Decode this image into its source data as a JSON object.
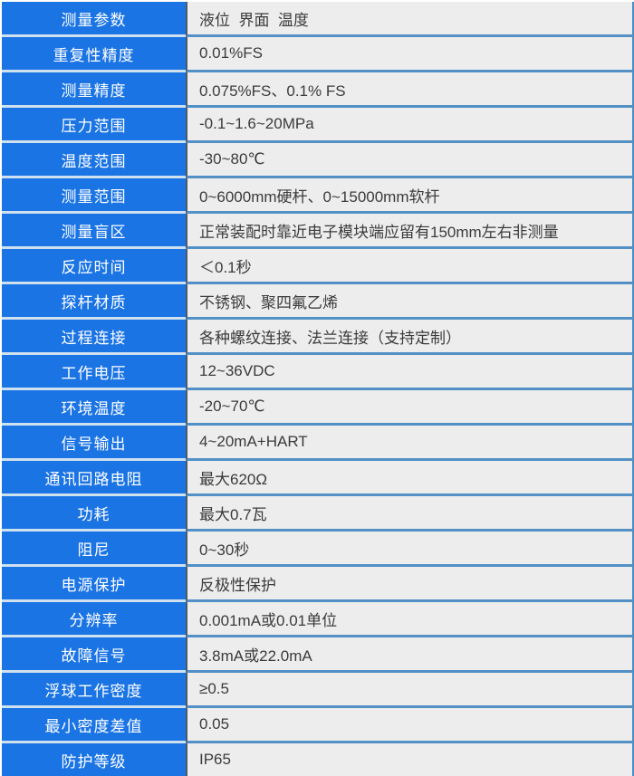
{
  "table": {
    "title_semantic": "magnetostrictive-level-transmitter-specifications",
    "rows": [
      {
        "label": "测量参数",
        "value": "液位  界面  温度"
      },
      {
        "label": "重复性精度",
        "value": "0.01%FS"
      },
      {
        "label": "测量精度",
        "value": "0.075%FS、0.1% FS"
      },
      {
        "label": "压力范围",
        "value": "-0.1~1.6~20MPa"
      },
      {
        "label": "温度范围",
        "value": "-30~80℃"
      },
      {
        "label": "测量范围",
        "value": "0~6000mm硬杆、0~15000mm软杆"
      },
      {
        "label": "测量盲区",
        "value": "正常装配时靠近电子模块端应留有150mm左右非测量"
      },
      {
        "label": "反应时间",
        "value": "＜0.1秒"
      },
      {
        "label": "探杆材质",
        "value": "不锈钢、聚四氟乙烯"
      },
      {
        "label": "过程连接",
        "value": "各种螺纹连接、法兰连接（支持定制）"
      },
      {
        "label": "工作电压",
        "value": "12~36VDC"
      },
      {
        "label": "环境温度",
        "value": "-20~70℃"
      },
      {
        "label": "信号输出",
        "value": "4~20mA+HART"
      },
      {
        "label": "通讯回路电阻",
        "value": "最大620Ω"
      },
      {
        "label": "功耗",
        "value": "最大0.7瓦"
      },
      {
        "label": "阻尼",
        "value": "0~30秒"
      },
      {
        "label": "电源保护",
        "value": "反极性保护"
      },
      {
        "label": "分辨率",
        "value": "0.001mA或0.01单位"
      },
      {
        "label": "故障信号",
        "value": "3.8mA或22.0mA"
      },
      {
        "label": "浮球工作密度",
        "value": "≥0.5"
      },
      {
        "label": "最小密度差值",
        "value": "0.05"
      },
      {
        "label": "防护等级",
        "value": "IP65"
      }
    ],
    "colors": {
      "label_bg": "#1b74e4",
      "label_text": "#ffffff",
      "value_bg": "#ededed",
      "value_text": "#3b3b3b",
      "row_divider_left_column": "#cfe0ef",
      "row_divider_right_column": "#5290c6",
      "column_divider": "#4d5a66",
      "outer_border_right": "#4a8cc4"
    }
  }
}
